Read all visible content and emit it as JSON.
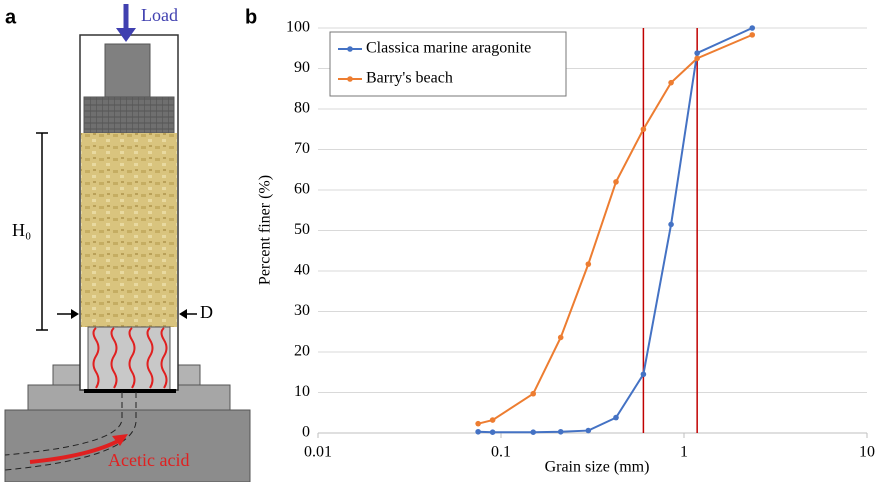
{
  "panels": {
    "a": "a",
    "b": "b"
  },
  "diagram": {
    "load": "Load",
    "height": "H₀",
    "diameter": "D",
    "acid": "Acetic acid"
  },
  "chart_data": {
    "type": "line",
    "x_label": "Grain size (mm)",
    "y_label": "Percent finer (%)",
    "x": [
      0.075,
      0.09,
      0.15,
      0.212,
      0.3,
      0.425,
      0.6,
      0.85,
      1.18,
      2.36
    ],
    "series": [
      {
        "name": "Classica marine aragonite",
        "color": "#4472c4",
        "values": [
          0.3,
          0.2,
          0.2,
          0.3,
          0.6,
          3.8,
          14.5,
          51.5,
          93.8,
          100
        ]
      },
      {
        "name": "Barry's beach",
        "color": "#ed7d31",
        "values": [
          2.3,
          3.2,
          9.7,
          23.6,
          41.7,
          62,
          75,
          86.5,
          92.5,
          98.3
        ]
      }
    ],
    "xlim": [
      0.01,
      10
    ],
    "xticks": [
      0.01,
      0.1,
      1,
      10
    ],
    "x_log": true,
    "ylim": [
      0,
      100
    ],
    "yticks": [
      0,
      10,
      20,
      30,
      40,
      50,
      60,
      70,
      80,
      90,
      100
    ],
    "grid": "y",
    "legend": "upper left",
    "vlines": [
      {
        "value": 0.6,
        "color": "#c00000"
      },
      {
        "value": 1.18,
        "color": "#c00000"
      }
    ]
  }
}
